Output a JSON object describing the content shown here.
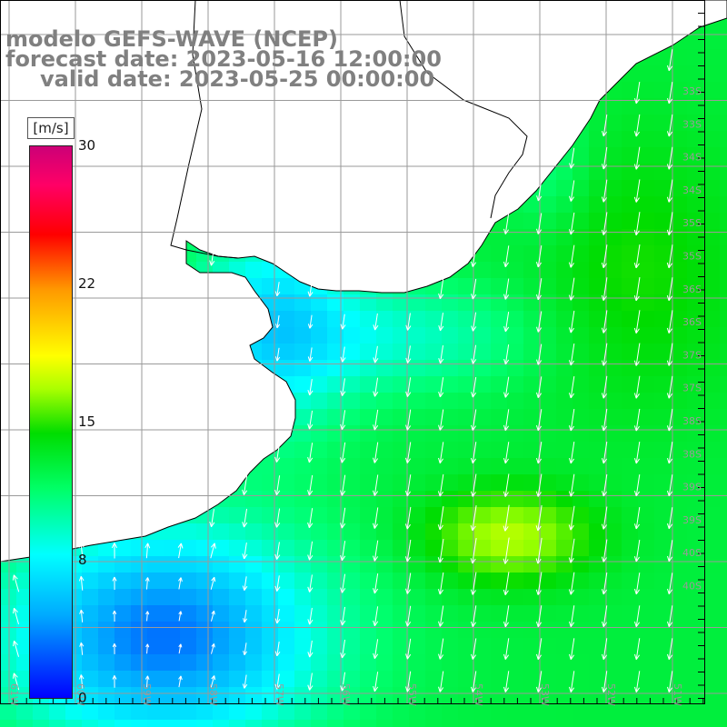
{
  "title": {
    "line1": "modelo GEFS-WAVE (NCEP)",
    "line2": "forecast date: 2023-05-16 12:00:00",
    "line3": "valid date: 2023-05-25 00:00:00"
  },
  "colorbar": {
    "unit": "[m/s]",
    "ticks": [
      "30",
      "22",
      "15",
      "8",
      "0"
    ],
    "tick_values": [
      30,
      22,
      15,
      8,
      0
    ],
    "min": 0,
    "max": 30,
    "colors": [
      "#0000ff",
      "#00aaff",
      "#00ffff",
      "#00ff66",
      "#00dd00",
      "#aaff00",
      "#ffff00",
      "#ff9900",
      "#ff0000",
      "#ff0066",
      "#cc0077"
    ]
  },
  "axes": {
    "lon_labels": [
      "61W",
      "60W",
      "59W",
      "58W",
      "57W",
      "56W",
      "55W",
      "54W",
      "53W",
      "52W",
      "51W"
    ],
    "lat_labels": [
      "33S",
      "33S",
      "34S",
      "34S",
      "35S",
      "35S",
      "36S",
      "36S",
      "37S",
      "37S",
      "38S",
      "38S",
      "39S",
      "39S",
      "40S",
      "40S"
    ]
  },
  "colors": {
    "land": "#ffffff",
    "coast": "#000000",
    "grid": "#9a9a9a",
    "arrows": "#ffffff",
    "title_text": "#808080"
  }
}
